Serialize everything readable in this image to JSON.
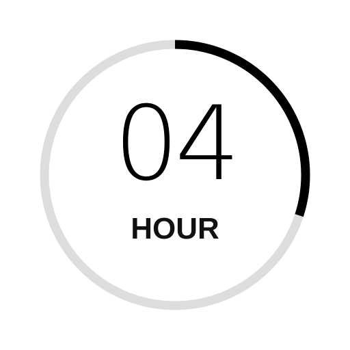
{
  "timer": {
    "value": "04",
    "unit": "HOUR",
    "progress": 0.3,
    "colors": {
      "track": "#dddddd",
      "progress": "#000000",
      "text": "#000000"
    }
  }
}
